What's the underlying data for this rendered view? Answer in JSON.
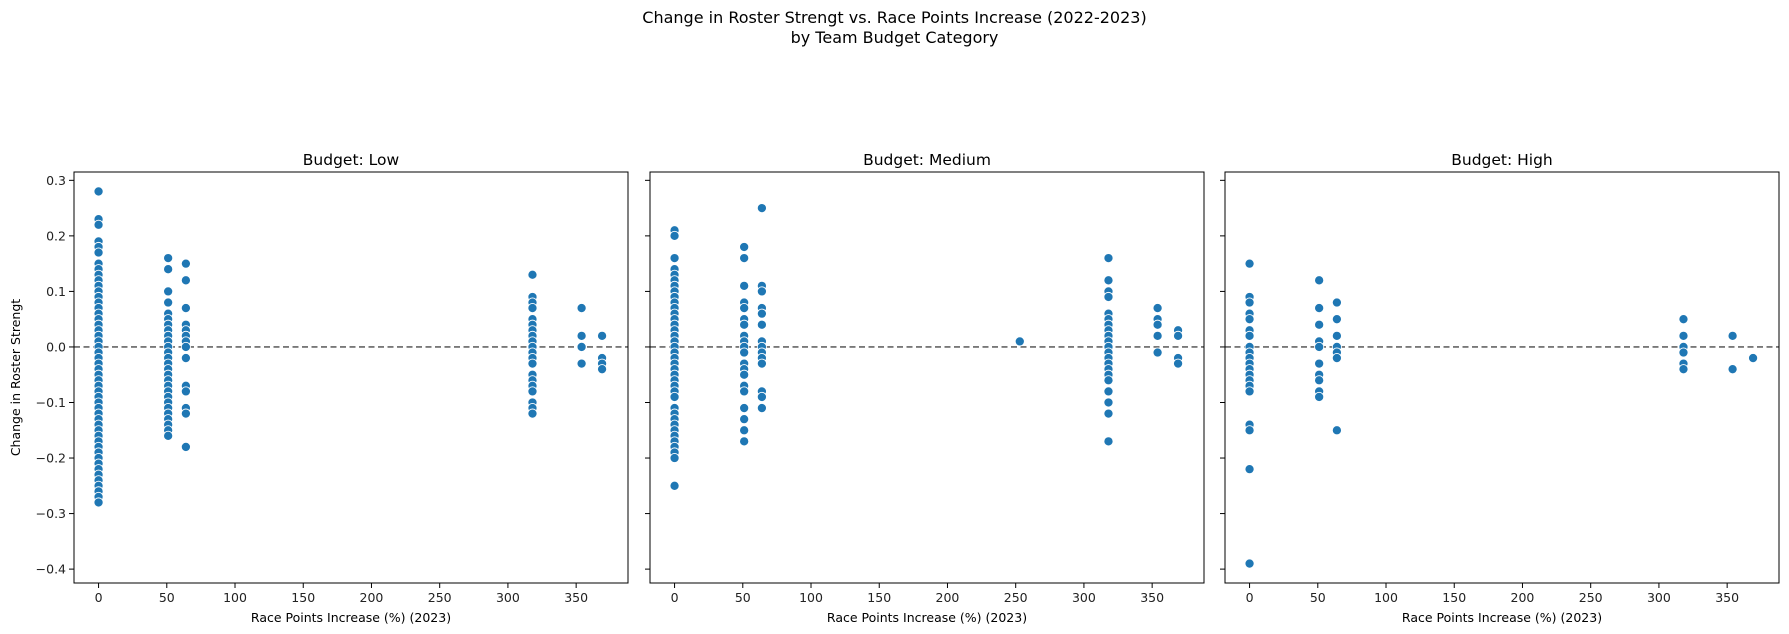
{
  "figure": {
    "title_line1": "Change in Roster Strengt vs. Race Points Increase (2022-2023)",
    "title_line2": "by Team Budget Category"
  },
  "style": {
    "marker_color": "#1f77b4",
    "marker_edge": "#ffffff",
    "refline_color": "#666666"
  },
  "chart_data": [
    {
      "type": "scatter",
      "title": "Budget: Low",
      "xlabel": "Race Points Increase (%) (2023)",
      "ylabel": "Change in Roster Strengt",
      "xlim": [
        -18,
        388
      ],
      "ylim": [
        -0.425,
        0.315
      ],
      "xticks": [
        0,
        50,
        100,
        150,
        200,
        250,
        300,
        350
      ],
      "yticks": [
        -0.4,
        -0.3,
        -0.2,
        -0.1,
        0.0,
        0.1,
        0.2,
        0.3
      ],
      "reference_line_y": 0.0,
      "points": [
        [
          0,
          0.28
        ],
        [
          0,
          0.23
        ],
        [
          0,
          0.22
        ],
        [
          0,
          0.19
        ],
        [
          0,
          0.18
        ],
        [
          0,
          0.17
        ],
        [
          0,
          0.15
        ],
        [
          0,
          0.14
        ],
        [
          0,
          0.13
        ],
        [
          0,
          0.12
        ],
        [
          0,
          0.11
        ],
        [
          0,
          0.1
        ],
        [
          0,
          0.09
        ],
        [
          0,
          0.08
        ],
        [
          0,
          0.07
        ],
        [
          0,
          0.06
        ],
        [
          0,
          0.05
        ],
        [
          0,
          0.04
        ],
        [
          0,
          0.03
        ],
        [
          0,
          0.02
        ],
        [
          0,
          0.01
        ],
        [
          0,
          0.0
        ],
        [
          0,
          -0.01
        ],
        [
          0,
          -0.02
        ],
        [
          0,
          -0.03
        ],
        [
          0,
          -0.04
        ],
        [
          0,
          -0.05
        ],
        [
          0,
          -0.06
        ],
        [
          0,
          -0.07
        ],
        [
          0,
          -0.08
        ],
        [
          0,
          -0.09
        ],
        [
          0,
          -0.1
        ],
        [
          0,
          -0.11
        ],
        [
          0,
          -0.12
        ],
        [
          0,
          -0.13
        ],
        [
          0,
          -0.14
        ],
        [
          0,
          -0.15
        ],
        [
          0,
          -0.16
        ],
        [
          0,
          -0.17
        ],
        [
          0,
          -0.18
        ],
        [
          0,
          -0.19
        ],
        [
          0,
          -0.2
        ],
        [
          0,
          -0.21
        ],
        [
          0,
          -0.22
        ],
        [
          0,
          -0.23
        ],
        [
          0,
          -0.24
        ],
        [
          0,
          -0.25
        ],
        [
          0,
          -0.26
        ],
        [
          0,
          -0.27
        ],
        [
          0,
          -0.28
        ],
        [
          51,
          0.16
        ],
        [
          51,
          0.14
        ],
        [
          51,
          0.1
        ],
        [
          51,
          0.08
        ],
        [
          51,
          0.06
        ],
        [
          51,
          0.05
        ],
        [
          51,
          0.04
        ],
        [
          51,
          0.03
        ],
        [
          51,
          0.02
        ],
        [
          51,
          0.01
        ],
        [
          51,
          0.0
        ],
        [
          51,
          -0.01
        ],
        [
          51,
          -0.02
        ],
        [
          51,
          -0.03
        ],
        [
          51,
          -0.04
        ],
        [
          51,
          -0.05
        ],
        [
          51,
          -0.06
        ],
        [
          51,
          -0.07
        ],
        [
          51,
          -0.08
        ],
        [
          51,
          -0.09
        ],
        [
          51,
          -0.1
        ],
        [
          51,
          -0.11
        ],
        [
          51,
          -0.12
        ],
        [
          51,
          -0.13
        ],
        [
          51,
          -0.14
        ],
        [
          51,
          -0.15
        ],
        [
          51,
          -0.16
        ],
        [
          64,
          0.15
        ],
        [
          64,
          0.12
        ],
        [
          64,
          0.07
        ],
        [
          64,
          0.04
        ],
        [
          64,
          0.03
        ],
        [
          64,
          0.02
        ],
        [
          64,
          0.01
        ],
        [
          64,
          0.0
        ],
        [
          64,
          -0.02
        ],
        [
          64,
          -0.07
        ],
        [
          64,
          -0.08
        ],
        [
          64,
          -0.11
        ],
        [
          64,
          -0.12
        ],
        [
          64,
          -0.18
        ],
        [
          318,
          0.13
        ],
        [
          318,
          0.09
        ],
        [
          318,
          0.08
        ],
        [
          318,
          0.07
        ],
        [
          318,
          0.05
        ],
        [
          318,
          0.04
        ],
        [
          318,
          0.03
        ],
        [
          318,
          0.02
        ],
        [
          318,
          0.01
        ],
        [
          318,
          0.0
        ],
        [
          318,
          -0.01
        ],
        [
          318,
          -0.02
        ],
        [
          318,
          -0.03
        ],
        [
          318,
          -0.05
        ],
        [
          318,
          -0.06
        ],
        [
          318,
          -0.07
        ],
        [
          318,
          -0.08
        ],
        [
          318,
          -0.1
        ],
        [
          318,
          -0.11
        ],
        [
          318,
          -0.12
        ],
        [
          354,
          0.07
        ],
        [
          354,
          0.02
        ],
        [
          354,
          0.0
        ],
        [
          354,
          -0.03
        ],
        [
          369,
          0.02
        ],
        [
          369,
          -0.02
        ],
        [
          369,
          -0.03
        ],
        [
          369,
          -0.04
        ]
      ]
    },
    {
      "type": "scatter",
      "title": "Budget: Medium",
      "xlabel": "Race Points Increase (%) (2023)",
      "ylabel": "",
      "xlim": [
        -18,
        388
      ],
      "ylim": [
        -0.425,
        0.315
      ],
      "xticks": [
        0,
        50,
        100,
        150,
        200,
        250,
        300,
        350
      ],
      "yticks": [
        -0.4,
        -0.3,
        -0.2,
        -0.1,
        0.0,
        0.1,
        0.2,
        0.3
      ],
      "reference_line_y": 0.0,
      "points": [
        [
          0,
          0.21
        ],
        [
          0,
          0.2
        ],
        [
          0,
          0.16
        ],
        [
          0,
          0.14
        ],
        [
          0,
          0.13
        ],
        [
          0,
          0.12
        ],
        [
          0,
          0.11
        ],
        [
          0,
          0.1
        ],
        [
          0,
          0.09
        ],
        [
          0,
          0.08
        ],
        [
          0,
          0.07
        ],
        [
          0,
          0.06
        ],
        [
          0,
          0.05
        ],
        [
          0,
          0.04
        ],
        [
          0,
          0.03
        ],
        [
          0,
          0.02
        ],
        [
          0,
          0.01
        ],
        [
          0,
          0.0
        ],
        [
          0,
          -0.01
        ],
        [
          0,
          -0.02
        ],
        [
          0,
          -0.03
        ],
        [
          0,
          -0.04
        ],
        [
          0,
          -0.05
        ],
        [
          0,
          -0.06
        ],
        [
          0,
          -0.07
        ],
        [
          0,
          -0.08
        ],
        [
          0,
          -0.09
        ],
        [
          0,
          -0.11
        ],
        [
          0,
          -0.12
        ],
        [
          0,
          -0.13
        ],
        [
          0,
          -0.14
        ],
        [
          0,
          -0.15
        ],
        [
          0,
          -0.16
        ],
        [
          0,
          -0.17
        ],
        [
          0,
          -0.18
        ],
        [
          0,
          -0.19
        ],
        [
          0,
          -0.2
        ],
        [
          0,
          -0.25
        ],
        [
          51,
          0.18
        ],
        [
          51,
          0.16
        ],
        [
          51,
          0.11
        ],
        [
          51,
          0.08
        ],
        [
          51,
          0.07
        ],
        [
          51,
          0.05
        ],
        [
          51,
          0.04
        ],
        [
          51,
          0.02
        ],
        [
          51,
          0.01
        ],
        [
          51,
          0.0
        ],
        [
          51,
          -0.01
        ],
        [
          51,
          -0.03
        ],
        [
          51,
          -0.04
        ],
        [
          51,
          -0.05
        ],
        [
          51,
          -0.07
        ],
        [
          51,
          -0.08
        ],
        [
          51,
          -0.11
        ],
        [
          51,
          -0.13
        ],
        [
          51,
          -0.15
        ],
        [
          51,
          -0.17
        ],
        [
          64,
          0.25
        ],
        [
          64,
          0.11
        ],
        [
          64,
          0.1
        ],
        [
          64,
          0.07
        ],
        [
          64,
          0.06
        ],
        [
          64,
          0.04
        ],
        [
          64,
          0.01
        ],
        [
          64,
          0.0
        ],
        [
          64,
          -0.01
        ],
        [
          64,
          -0.02
        ],
        [
          64,
          -0.03
        ],
        [
          64,
          -0.08
        ],
        [
          64,
          -0.09
        ],
        [
          64,
          -0.11
        ],
        [
          253,
          0.01
        ],
        [
          318,
          0.16
        ],
        [
          318,
          0.12
        ],
        [
          318,
          0.1
        ],
        [
          318,
          0.09
        ],
        [
          318,
          0.06
        ],
        [
          318,
          0.05
        ],
        [
          318,
          0.04
        ],
        [
          318,
          0.03
        ],
        [
          318,
          0.02
        ],
        [
          318,
          0.01
        ],
        [
          318,
          0.0
        ],
        [
          318,
          -0.01
        ],
        [
          318,
          -0.02
        ],
        [
          318,
          -0.03
        ],
        [
          318,
          -0.04
        ],
        [
          318,
          -0.05
        ],
        [
          318,
          -0.06
        ],
        [
          318,
          -0.08
        ],
        [
          318,
          -0.1
        ],
        [
          318,
          -0.12
        ],
        [
          318,
          -0.17
        ],
        [
          354,
          0.07
        ],
        [
          354,
          0.05
        ],
        [
          354,
          0.04
        ],
        [
          354,
          0.02
        ],
        [
          354,
          -0.01
        ],
        [
          369,
          0.03
        ],
        [
          369,
          0.02
        ],
        [
          369,
          -0.02
        ],
        [
          369,
          -0.03
        ]
      ]
    },
    {
      "type": "scatter",
      "title": "Budget: High",
      "xlabel": "Race Points Increase (%) (2023)",
      "ylabel": "",
      "xlim": [
        -18,
        388
      ],
      "ylim": [
        -0.425,
        0.315
      ],
      "xticks": [
        0,
        50,
        100,
        150,
        200,
        250,
        300,
        350
      ],
      "yticks": [
        -0.4,
        -0.3,
        -0.2,
        -0.1,
        0.0,
        0.1,
        0.2,
        0.3
      ],
      "reference_line_y": 0.0,
      "points": [
        [
          0,
          0.15
        ],
        [
          0,
          0.09
        ],
        [
          0,
          0.08
        ],
        [
          0,
          0.06
        ],
        [
          0,
          0.05
        ],
        [
          0,
          0.03
        ],
        [
          0,
          0.02
        ],
        [
          0,
          0.0
        ],
        [
          0,
          -0.01
        ],
        [
          0,
          -0.02
        ],
        [
          0,
          -0.03
        ],
        [
          0,
          -0.04
        ],
        [
          0,
          -0.05
        ],
        [
          0,
          -0.06
        ],
        [
          0,
          -0.07
        ],
        [
          0,
          -0.08
        ],
        [
          0,
          -0.14
        ],
        [
          0,
          -0.15
        ],
        [
          0,
          -0.22
        ],
        [
          0,
          -0.39
        ],
        [
          51,
          0.12
        ],
        [
          51,
          0.07
        ],
        [
          51,
          0.04
        ],
        [
          51,
          0.01
        ],
        [
          51,
          0.0
        ],
        [
          51,
          -0.03
        ],
        [
          51,
          -0.05
        ],
        [
          51,
          -0.06
        ],
        [
          51,
          -0.08
        ],
        [
          51,
          -0.09
        ],
        [
          64,
          0.08
        ],
        [
          64,
          0.05
        ],
        [
          64,
          0.02
        ],
        [
          64,
          0.0
        ],
        [
          64,
          -0.01
        ],
        [
          64,
          -0.02
        ],
        [
          64,
          -0.15
        ],
        [
          318,
          0.05
        ],
        [
          318,
          0.02
        ],
        [
          318,
          0.0
        ],
        [
          318,
          -0.01
        ],
        [
          318,
          -0.03
        ],
        [
          318,
          -0.04
        ],
        [
          354,
          0.02
        ],
        [
          354,
          -0.04
        ],
        [
          369,
          -0.02
        ]
      ]
    }
  ]
}
